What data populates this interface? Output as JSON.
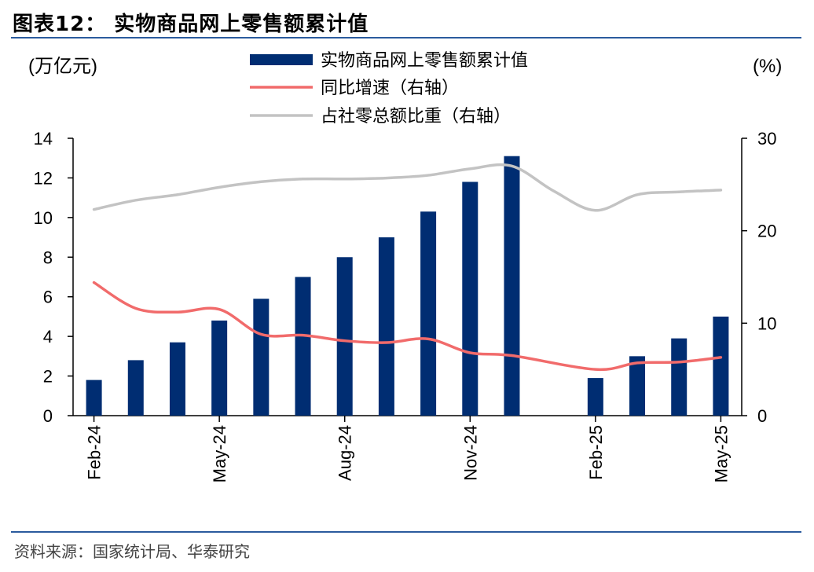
{
  "header": {
    "title": "图表12： 实物商品网上零售额累计值"
  },
  "footer": {
    "source": "资料来源：国家统计局、华泰研究"
  },
  "chart_data": {
    "type": "bar",
    "title": "实物商品网上零售额累计值",
    "left_unit": "(万亿元)",
    "right_unit": "(%)",
    "categories": [
      "Feb-24",
      "Mar-24",
      "Apr-24",
      "May-24",
      "Jun-24",
      "Jul-24",
      "Aug-24",
      "Sep-24",
      "Oct-24",
      "Nov-24",
      "Dec-24",
      "Jan-25",
      "Feb-25",
      "Mar-25",
      "Apr-25",
      "May-25"
    ],
    "x_tick_labels": [
      "Feb-24",
      "May-24",
      "Aug-24",
      "Nov-24",
      "Feb-25",
      "May-25"
    ],
    "x_tick_indices": [
      0,
      3,
      6,
      9,
      12,
      15
    ],
    "ylim": [
      0,
      14
    ],
    "y_ticks": [
      0,
      2,
      4,
      6,
      8,
      10,
      12,
      14
    ],
    "y2lim": [
      0,
      30
    ],
    "y2_ticks": [
      0,
      10,
      20,
      30
    ],
    "series": [
      {
        "name": "实物商品网上零售额累计值",
        "type": "bar",
        "axis": "left",
        "color": "#002d72",
        "values": [
          1.8,
          2.8,
          3.7,
          4.8,
          5.9,
          7.0,
          8.0,
          9.0,
          10.3,
          11.8,
          13.1,
          null,
          1.9,
          3.0,
          3.9,
          5.0
        ]
      },
      {
        "name": "同比增速（右轴）",
        "type": "line",
        "axis": "right",
        "color": "#f16b6b",
        "values": [
          14.4,
          11.6,
          11.2,
          11.5,
          8.8,
          8.7,
          8.1,
          7.9,
          8.3,
          6.8,
          6.5,
          null,
          5.0,
          5.7,
          5.8,
          6.3
        ]
      },
      {
        "name": "占社零总额比重（右轴）",
        "type": "line",
        "axis": "right",
        "color": "#c3c3c3",
        "values": [
          22.3,
          23.3,
          23.9,
          24.7,
          25.3,
          25.6,
          25.6,
          25.7,
          26.0,
          26.7,
          27.0,
          24.3,
          22.2,
          23.9,
          24.2,
          24.4
        ]
      }
    ]
  }
}
